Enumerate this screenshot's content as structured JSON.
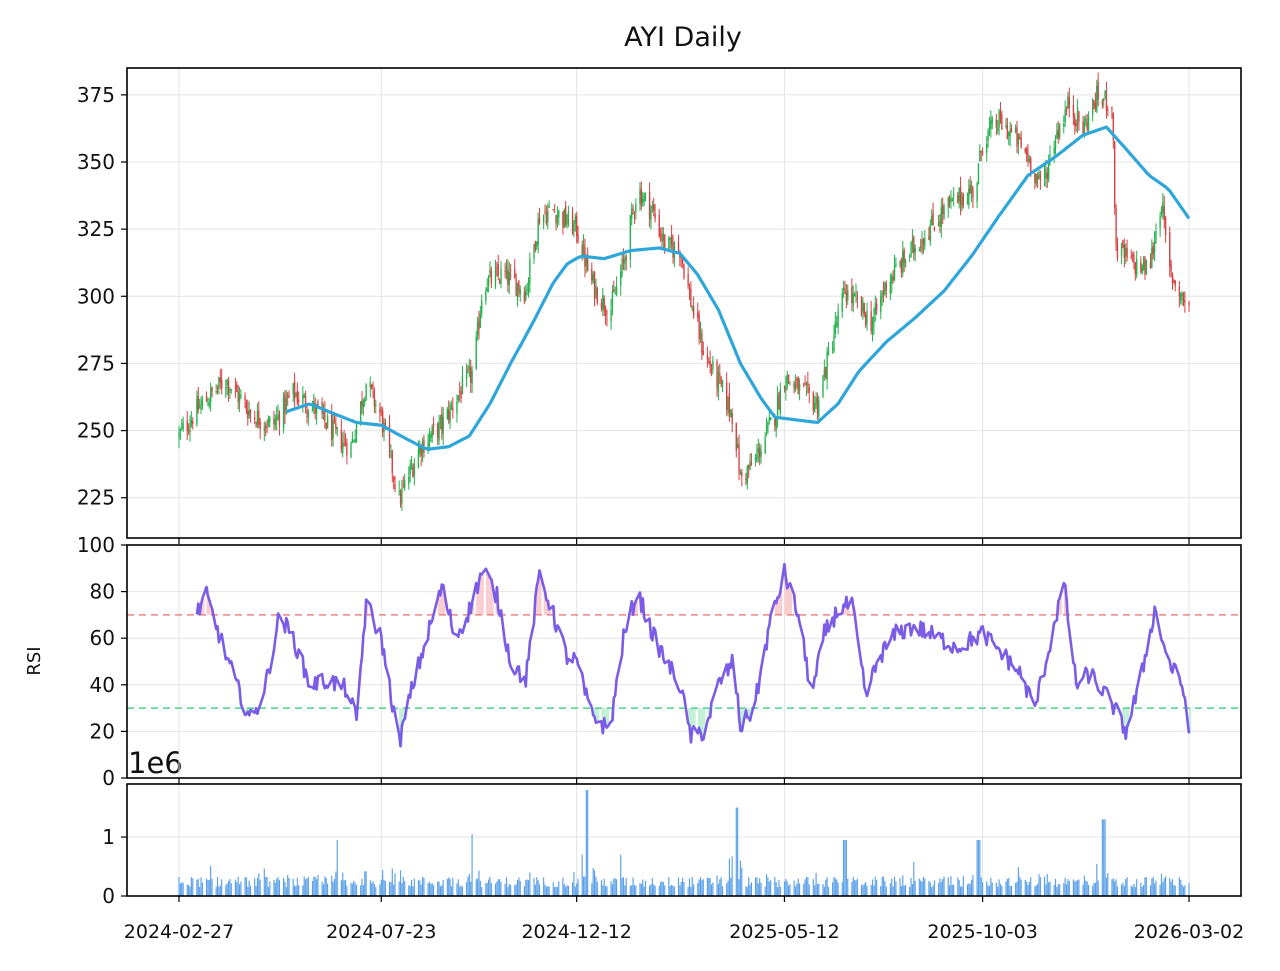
{
  "chart_data": {
    "type": "candlestick",
    "title": "AYI Daily",
    "x_tick_labels": [
      "2024-02-27",
      "2024-07-23",
      "2024-12-12",
      "2025-05-12",
      "2025-10-03",
      "2026-03-02"
    ],
    "x_range": [
      "2024-02-27",
      "2026-03-02"
    ],
    "grid": true,
    "price": {
      "ylim": [
        210,
        385
      ],
      "y_ticks": [
        225,
        250,
        275,
        300,
        325,
        350,
        375
      ],
      "up_color": "#22b14c",
      "down_color": "#d94040",
      "ma_color": "#2ea6d9",
      "close_anchors": [
        [
          "2024-02-27",
          248
        ],
        [
          "2024-03-10",
          257
        ],
        [
          "2024-04-01",
          269
        ],
        [
          "2024-04-20",
          256
        ],
        [
          "2024-05-05",
          252
        ],
        [
          "2024-05-20",
          264
        ],
        [
          "2024-06-05",
          258
        ],
        [
          "2024-06-20",
          248
        ],
        [
          "2024-07-01",
          244
        ],
        [
          "2024-07-12",
          268
        ],
        [
          "2024-07-23",
          255
        ],
        [
          "2024-08-05",
          224
        ],
        [
          "2024-08-20",
          244
        ],
        [
          "2024-09-05",
          252
        ],
        [
          "2024-09-20",
          266
        ],
        [
          "2024-09-28",
          272
        ],
        [
          "2024-10-05",
          305
        ],
        [
          "2024-10-20",
          308
        ],
        [
          "2024-11-05",
          302
        ],
        [
          "2024-11-15",
          330
        ],
        [
          "2024-11-25",
          332
        ],
        [
          "2024-12-12",
          325
        ],
        [
          "2024-12-22",
          306
        ],
        [
          "2025-01-05",
          294
        ],
        [
          "2025-01-15",
          312
        ],
        [
          "2025-01-25",
          340
        ],
        [
          "2025-02-05",
          332
        ],
        [
          "2025-02-15",
          318
        ],
        [
          "2025-02-25",
          318
        ],
        [
          "2025-03-05",
          298
        ],
        [
          "2025-03-15",
          278
        ],
        [
          "2025-03-25",
          268
        ],
        [
          "2025-04-05",
          255
        ],
        [
          "2025-04-10",
          232
        ],
        [
          "2025-04-20",
          238
        ],
        [
          "2025-05-05",
          256
        ],
        [
          "2025-05-12",
          270
        ],
        [
          "2025-05-25",
          264
        ],
        [
          "2025-06-05",
          260
        ],
        [
          "2025-06-15",
          282
        ],
        [
          "2025-06-25",
          302
        ],
        [
          "2025-07-05",
          296
        ],
        [
          "2025-07-15",
          290
        ],
        [
          "2025-07-25",
          305
        ],
        [
          "2025-08-05",
          312
        ],
        [
          "2025-08-20",
          322
        ],
        [
          "2025-09-05",
          332
        ],
        [
          "2025-09-20",
          338
        ],
        [
          "2025-09-28",
          340
        ],
        [
          "2025-10-03",
          358
        ],
        [
          "2025-10-15",
          365
        ],
        [
          "2025-10-25",
          360
        ],
        [
          "2025-11-05",
          352
        ],
        [
          "2025-11-15",
          340
        ],
        [
          "2025-11-25",
          360
        ],
        [
          "2025-12-05",
          372
        ],
        [
          "2025-12-15",
          362
        ],
        [
          "2025-12-25",
          374
        ],
        [
          "2026-01-05",
          372
        ],
        [
          "2026-01-08",
          318
        ],
        [
          "2026-01-20",
          312
        ],
        [
          "2026-02-01",
          310
        ],
        [
          "2026-02-10",
          336
        ],
        [
          "2026-02-15",
          310
        ],
        [
          "2026-02-25",
          300
        ],
        [
          "2026-03-02",
          296
        ]
      ],
      "ma_anchors": [
        [
          "2024-05-15",
          257
        ],
        [
          "2024-06-01",
          260
        ],
        [
          "2024-06-20",
          256
        ],
        [
          "2024-07-05",
          253
        ],
        [
          "2024-07-23",
          252
        ],
        [
          "2024-08-10",
          247
        ],
        [
          "2024-08-25",
          243
        ],
        [
          "2024-09-10",
          244
        ],
        [
          "2024-09-25",
          248
        ],
        [
          "2024-10-10",
          260
        ],
        [
          "2024-10-25",
          275
        ],
        [
          "2024-11-10",
          290
        ],
        [
          "2024-11-25",
          305
        ],
        [
          "2024-12-05",
          312
        ],
        [
          "2024-12-15",
          315
        ],
        [
          "2025-01-01",
          314
        ],
        [
          "2025-01-20",
          317
        ],
        [
          "2025-02-10",
          318
        ],
        [
          "2025-02-25",
          316
        ],
        [
          "2025-03-10",
          308
        ],
        [
          "2025-03-25",
          295
        ],
        [
          "2025-04-10",
          275
        ],
        [
          "2025-04-25",
          262
        ],
        [
          "2025-05-05",
          255
        ],
        [
          "2025-05-20",
          254
        ],
        [
          "2025-06-05",
          253
        ],
        [
          "2025-06-20",
          260
        ],
        [
          "2025-07-05",
          272
        ],
        [
          "2025-07-25",
          283
        ],
        [
          "2025-08-15",
          292
        ],
        [
          "2025-09-05",
          302
        ],
        [
          "2025-09-25",
          315
        ],
        [
          "2025-10-15",
          330
        ],
        [
          "2025-11-05",
          345
        ],
        [
          "2025-11-25",
          352
        ],
        [
          "2025-12-15",
          360
        ],
        [
          "2026-01-01",
          363
        ],
        [
          "2026-01-15",
          355
        ],
        [
          "2026-02-01",
          345
        ],
        [
          "2026-02-15",
          340
        ],
        [
          "2026-03-02",
          329
        ]
      ]
    },
    "rsi": {
      "ylabel": "RSI",
      "ylim": [
        0,
        100
      ],
      "y_ticks": [
        0,
        20,
        40,
        60,
        80,
        100
      ],
      "overbought": 70,
      "oversold": 30,
      "line_color": "#7b5ce6",
      "overbought_color": "#e8858a",
      "oversold_color": "#4fcf8a",
      "anchors": [
        [
          "2024-03-10",
          70
        ],
        [
          "2024-03-18",
          78
        ],
        [
          "2024-03-28",
          60
        ],
        [
          "2024-04-10",
          38
        ],
        [
          "2024-04-20",
          24
        ],
        [
          "2024-04-30",
          40
        ],
        [
          "2024-05-10",
          70
        ],
        [
          "2024-05-20",
          60
        ],
        [
          "2024-06-01",
          40
        ],
        [
          "2024-06-15",
          42
        ],
        [
          "2024-06-28",
          38
        ],
        [
          "2024-07-05",
          25
        ],
        [
          "2024-07-12",
          75
        ],
        [
          "2024-07-23",
          60
        ],
        [
          "2024-08-05",
          15
        ],
        [
          "2024-08-15",
          40
        ],
        [
          "2024-08-25",
          60
        ],
        [
          "2024-09-05",
          82
        ],
        [
          "2024-09-15",
          60
        ],
        [
          "2024-09-25",
          72
        ],
        [
          "2024-10-05",
          90
        ],
        [
          "2024-10-15",
          78
        ],
        [
          "2024-10-25",
          50
        ],
        [
          "2024-11-05",
          42
        ],
        [
          "2024-11-15",
          88
        ],
        [
          "2024-11-25",
          70
        ],
        [
          "2024-12-05",
          52
        ],
        [
          "2024-12-12",
          50
        ],
        [
          "2024-12-22",
          28
        ],
        [
          "2025-01-05",
          20
        ],
        [
          "2025-01-15",
          60
        ],
        [
          "2025-01-25",
          80
        ],
        [
          "2025-02-05",
          62
        ],
        [
          "2025-02-15",
          50
        ],
        [
          "2025-02-25",
          40
        ],
        [
          "2025-03-05",
          18
        ],
        [
          "2025-03-15",
          20
        ],
        [
          "2025-03-25",
          40
        ],
        [
          "2025-04-05",
          50
        ],
        [
          "2025-04-10",
          22
        ],
        [
          "2025-04-20",
          30
        ],
        [
          "2025-05-01",
          65
        ],
        [
          "2025-05-12",
          88
        ],
        [
          "2025-05-22",
          70
        ],
        [
          "2025-06-01",
          35
        ],
        [
          "2025-06-10",
          62
        ],
        [
          "2025-06-20",
          72
        ],
        [
          "2025-06-30",
          75
        ],
        [
          "2025-07-10",
          35
        ],
        [
          "2025-07-20",
          52
        ],
        [
          "2025-08-01",
          62
        ],
        [
          "2025-08-15",
          65
        ],
        [
          "2025-09-01",
          60
        ],
        [
          "2025-09-15",
          56
        ],
        [
          "2025-10-03",
          62
        ],
        [
          "2025-10-15",
          55
        ],
        [
          "2025-10-30",
          45
        ],
        [
          "2025-11-10",
          30
        ],
        [
          "2025-11-20",
          55
        ],
        [
          "2025-12-01",
          84
        ],
        [
          "2025-12-10",
          40
        ],
        [
          "2025-12-20",
          45
        ],
        [
          "2026-01-05",
          32
        ],
        [
          "2026-01-15",
          20
        ],
        [
          "2026-01-25",
          40
        ],
        [
          "2026-02-05",
          72
        ],
        [
          "2026-02-15",
          50
        ],
        [
          "2026-02-25",
          40
        ],
        [
          "2026-03-02",
          23
        ]
      ]
    },
    "volume": {
      "multiplier_label": "1e6",
      "ylim": [
        0,
        1.9
      ],
      "y_ticks": [
        0,
        1
      ],
      "y_tick_labels": [
        "0",
        "1"
      ],
      "bar_color": "#5aa0e8",
      "spikes": [
        [
          "2024-06-22",
          0.95
        ],
        [
          "2024-07-12",
          0.42
        ],
        [
          "2024-09-28",
          1.05
        ],
        [
          "2024-12-20",
          1.8
        ],
        [
          "2025-01-12",
          0.7
        ],
        [
          "2025-04-07",
          1.5
        ],
        [
          "2025-06-25",
          0.95
        ],
        [
          "2025-09-30",
          0.95
        ],
        [
          "2025-12-30",
          1.3
        ]
      ]
    }
  }
}
